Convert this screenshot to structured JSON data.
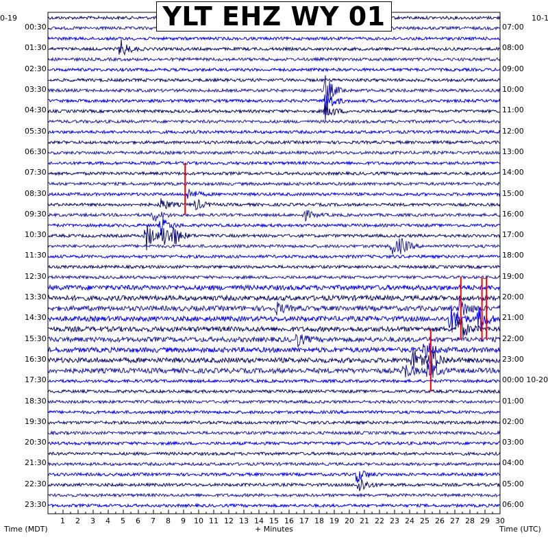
{
  "chart_data": {
    "type": "line",
    "title": "YLT EHZ WY 01",
    "xlabel": "+ Minutes",
    "x_ticks": [
      1,
      2,
      3,
      4,
      5,
      6,
      7,
      8,
      9,
      10,
      11,
      12,
      13,
      14,
      15,
      16,
      17,
      18,
      19,
      20,
      21,
      22,
      23,
      24,
      25,
      26,
      27,
      28,
      29,
      30
    ],
    "xlim": [
      0,
      30
    ],
    "left_axis_label": "Time (MDT)",
    "right_axis_label": "Time (UTC)",
    "left_date_partial": "0-19",
    "right_date_partial": "10-1",
    "left_time_labels": [
      "00:30",
      "01:30",
      "02:30",
      "03:30",
      "04:30",
      "05:30",
      "06:30",
      "07:30",
      "08:30",
      "09:30",
      "10:30",
      "11:30",
      "12:30",
      "13:30",
      "14:30",
      "15:30",
      "16:30",
      "17:30",
      "18:30",
      "19:30",
      "20:30",
      "21:30",
      "22:30",
      "23:30"
    ],
    "right_time_labels": [
      "07:00",
      "08:00",
      "09:00",
      "10:00",
      "11:00",
      "12:00",
      "13:00",
      "14:00",
      "15:00",
      "16:00",
      "17:00",
      "18:00",
      "19:00",
      "20:00",
      "21:00",
      "22:00",
      "23:00",
      "00:00 10-20",
      "01:00",
      "02:00",
      "03:00",
      "04:00",
      "05:00",
      "06:00"
    ],
    "num_traces": 48,
    "trace_colors": [
      "#0a0a6e",
      "#1c1ca8",
      "#0000ff"
    ],
    "clip_color": "#ff0000",
    "events": [
      {
        "trace": 3,
        "minute": 4.8,
        "amp": 14
      },
      {
        "trace": 7,
        "minute": 18.4,
        "amp": 22
      },
      {
        "trace": 8,
        "minute": 18.4,
        "amp": 18
      },
      {
        "trace": 9,
        "minute": 18.4,
        "amp": 14
      },
      {
        "trace": 17,
        "minute": 9.3,
        "amp": 8
      },
      {
        "trace": 18,
        "minute": 7.5,
        "amp": 10
      },
      {
        "trace": 18,
        "minute": 9.8,
        "amp": 8
      },
      {
        "trace": 19,
        "minute": 17,
        "amp": 8
      },
      {
        "trace": 19,
        "minute": 7,
        "amp": 10
      },
      {
        "trace": 20,
        "minute": 7.5,
        "amp": 12
      },
      {
        "trace": 21,
        "minute": 6.5,
        "amp": 22
      },
      {
        "trace": 21,
        "minute": 7.6,
        "amp": 18
      },
      {
        "trace": 21,
        "minute": 8.2,
        "amp": 16
      },
      {
        "trace": 22,
        "minute": 22.8,
        "amp": 14
      },
      {
        "trace": 22,
        "minute": 23.4,
        "amp": 10
      },
      {
        "trace": 28,
        "minute": 27.3,
        "amp": 18
      },
      {
        "trace": 28,
        "minute": 15.2,
        "amp": 8
      },
      {
        "trace": 29,
        "minute": 26.7,
        "amp": 22
      },
      {
        "trace": 29,
        "minute": 28.6,
        "amp": 18
      },
      {
        "trace": 30,
        "minute": 27.2,
        "amp": 20
      },
      {
        "trace": 31,
        "minute": 16.5,
        "amp": 10
      },
      {
        "trace": 32,
        "minute": 25,
        "amp": 14
      },
      {
        "trace": 33,
        "minute": 25.4,
        "amp": 22
      },
      {
        "trace": 33,
        "minute": 24.2,
        "amp": 16
      },
      {
        "trace": 34,
        "minute": 25.2,
        "amp": 16
      },
      {
        "trace": 34,
        "minute": 23.6,
        "amp": 12
      },
      {
        "trace": 44,
        "minute": 20.5,
        "amp": 12
      },
      {
        "trace": 45,
        "minute": 20.6,
        "amp": 14
      }
    ],
    "clipped": [
      {
        "minute": 9.1,
        "from_trace": 14,
        "to_trace": 19
      },
      {
        "minute": 27.4,
        "from_trace": 25,
        "to_trace": 31
      },
      {
        "minute": 28.8,
        "from_trace": 25,
        "to_trace": 31
      },
      {
        "minute": 29.1,
        "from_trace": 25,
        "to_trace": 31
      },
      {
        "minute": 25.4,
        "from_trace": 30,
        "to_trace": 36
      }
    ]
  }
}
